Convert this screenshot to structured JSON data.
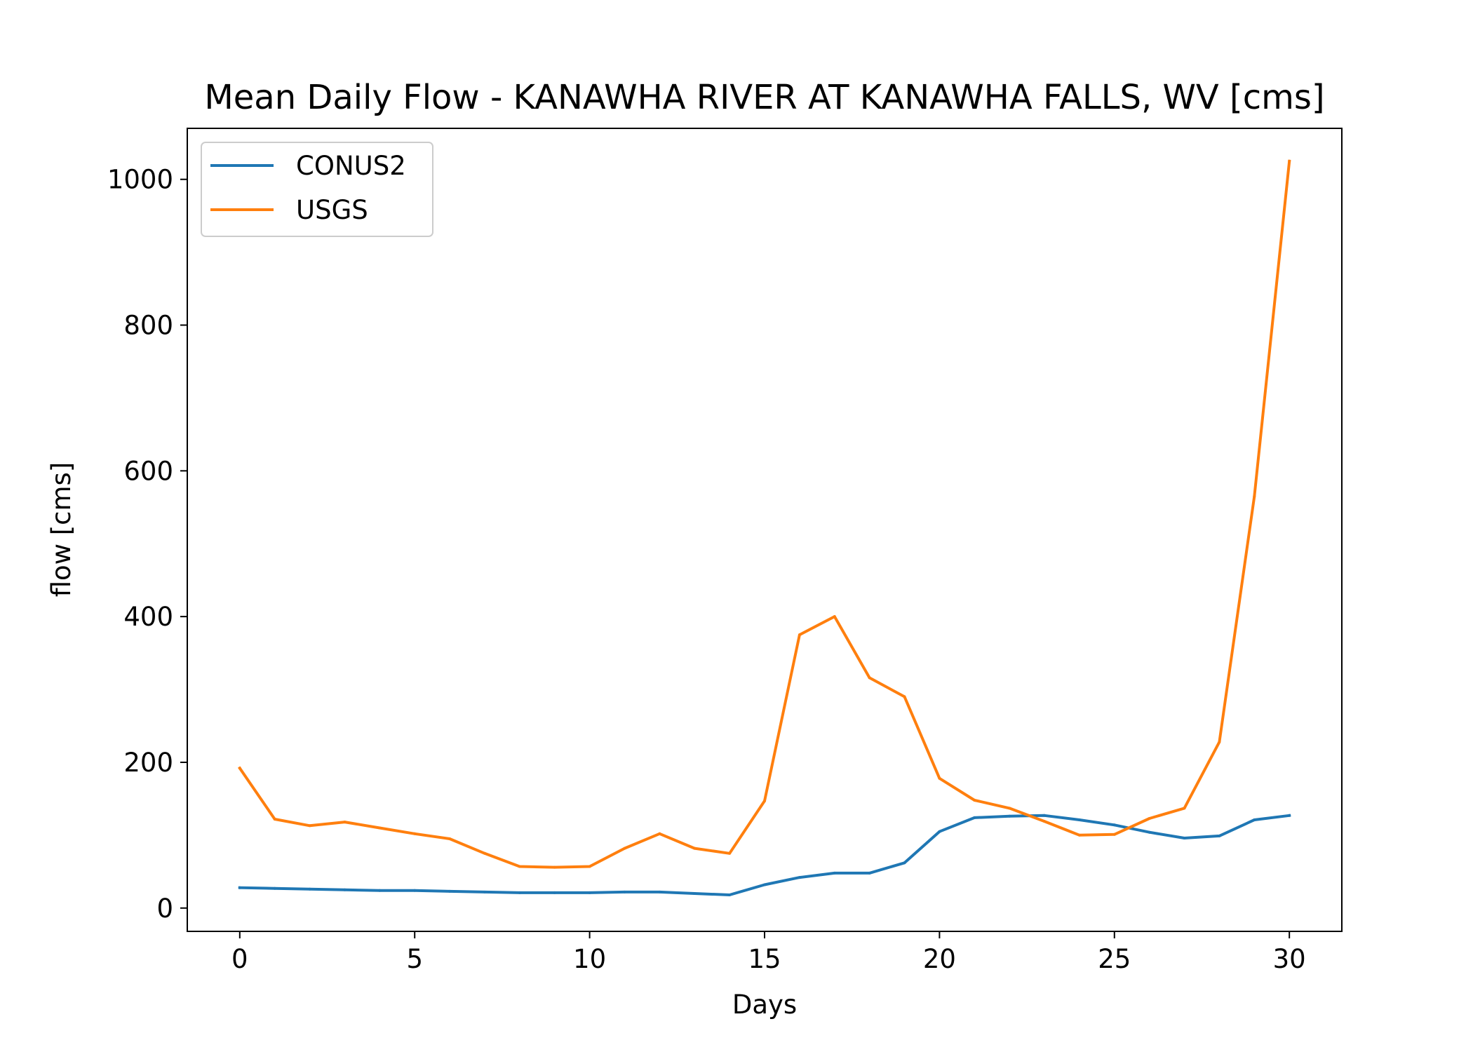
{
  "chart_data": {
    "type": "line",
    "title": "Mean Daily Flow - KANAWHA RIVER AT KANAWHA FALLS, WV [cms]",
    "xlabel": "Days",
    "ylabel": "flow [cms]",
    "xlim": [
      -1.5,
      31.5
    ],
    "ylim": [
      -32,
      1070
    ],
    "xticks": [
      0,
      5,
      10,
      15,
      20,
      25,
      30
    ],
    "yticks": [
      0,
      200,
      400,
      600,
      800,
      1000
    ],
    "grid": false,
    "legend_position": "top-left",
    "x": [
      0,
      1,
      2,
      3,
      4,
      5,
      6,
      7,
      8,
      9,
      10,
      11,
      12,
      13,
      14,
      15,
      16,
      17,
      18,
      19,
      20,
      21,
      22,
      23,
      24,
      25,
      26,
      27,
      28,
      29,
      30
    ],
    "series": [
      {
        "name": "CONUS2",
        "color": "#1f77b4",
        "values": [
          28,
          27,
          26,
          25,
          24,
          24,
          23,
          22,
          21,
          21,
          21,
          22,
          22,
          20,
          18,
          32,
          42,
          48,
          48,
          62,
          105,
          124,
          126,
          127,
          121,
          114,
          104,
          96,
          99,
          121,
          127
        ]
      },
      {
        "name": "USGS",
        "color": "#ff7f0e",
        "values": [
          192,
          122,
          113,
          118,
          110,
          102,
          95,
          75,
          57,
          56,
          57,
          82,
          102,
          82,
          75,
          147,
          375,
          400,
          316,
          290,
          178,
          148,
          137,
          119,
          100,
          101,
          123,
          137,
          228,
          565,
          1025
        ]
      }
    ]
  }
}
